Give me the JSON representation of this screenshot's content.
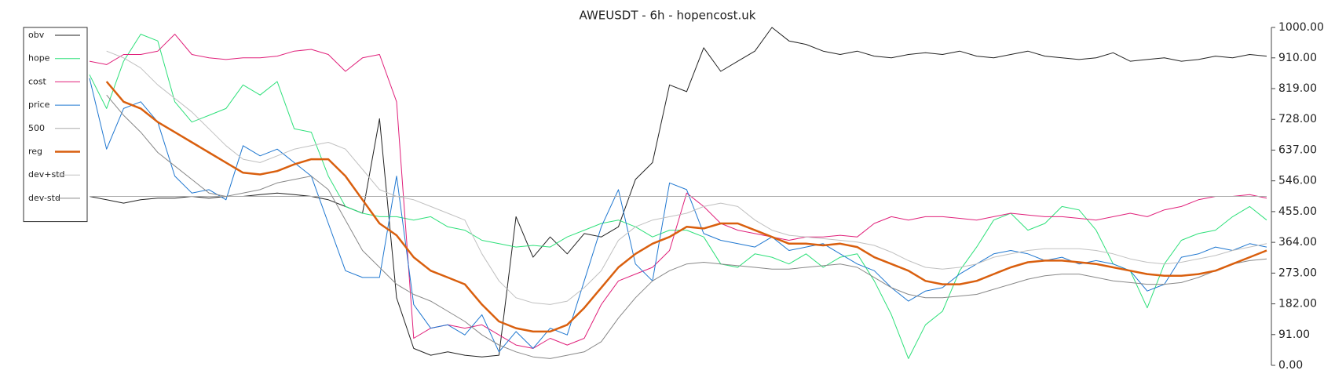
{
  "chart_data": {
    "type": "line",
    "title": "AWEUSDT - 6h - hopencost.uk",
    "y_axis_position": "right",
    "legend": "upper left",
    "ylim": [
      0,
      1000
    ],
    "yticks": [
      {
        "value": 0,
        "label": "0.00"
      },
      {
        "value": 91,
        "label": "91.00"
      },
      {
        "value": 182,
        "label": "182.00"
      },
      {
        "value": 273,
        "label": "273.00"
      },
      {
        "value": 364,
        "label": "364.00"
      },
      {
        "value": 455,
        "label": "455.00"
      },
      {
        "value": 546,
        "label": "546.00"
      },
      {
        "value": 637,
        "label": "637.00"
      },
      {
        "value": 728,
        "label": "728.00"
      },
      {
        "value": 819,
        "label": "819.00"
      },
      {
        "value": 910,
        "label": "910.00"
      },
      {
        "value": 1000,
        "label": "1000.00"
      }
    ],
    "series": [
      {
        "name": "obv",
        "color": "#222222",
        "width": 1,
        "values": [
          500,
          490,
          480,
          490,
          495,
          495,
          500,
          495,
          500,
          500,
          505,
          510,
          505,
          500,
          490,
          470,
          450,
          730,
          200,
          50,
          30,
          40,
          30,
          25,
          30,
          440,
          320,
          380,
          330,
          390,
          380,
          410,
          550,
          600,
          830,
          810,
          940,
          870,
          900,
          930,
          1000,
          960,
          950,
          930,
          920,
          930,
          915,
          910,
          920,
          925,
          920,
          930,
          915,
          910,
          920,
          930,
          915,
          910,
          905,
          910,
          925,
          900,
          905,
          910,
          900,
          905,
          915,
          910,
          920,
          915
        ]
      },
      {
        "name": "hope",
        "color": "#2ee07a",
        "width": 1,
        "values": [
          860,
          760,
          900,
          980,
          960,
          780,
          720,
          740,
          760,
          830,
          800,
          840,
          700,
          690,
          560,
          470,
          450,
          440,
          440,
          430,
          440,
          410,
          400,
          370,
          360,
          350,
          355,
          350,
          380,
          400,
          420,
          430,
          410,
          380,
          400,
          400,
          380,
          300,
          290,
          330,
          320,
          300,
          330,
          290,
          320,
          330,
          250,
          150,
          20,
          120,
          160,
          280,
          350,
          430,
          450,
          400,
          420,
          470,
          460,
          400,
          300,
          280,
          170,
          300,
          370,
          390,
          400,
          440,
          470,
          430
        ]
      },
      {
        "name": "cost",
        "color": "#e0207a",
        "width": 1,
        "values": [
          900,
          890,
          920,
          920,
          930,
          980,
          920,
          910,
          905,
          910,
          910,
          915,
          930,
          935,
          920,
          870,
          910,
          920,
          780,
          80,
          110,
          120,
          110,
          120,
          90,
          60,
          50,
          80,
          60,
          80,
          180,
          250,
          270,
          290,
          340,
          510,
          470,
          420,
          400,
          390,
          380,
          370,
          380,
          380,
          385,
          380,
          420,
          440,
          430,
          440,
          440,
          435,
          430,
          440,
          450,
          445,
          440,
          440,
          435,
          430,
          440,
          450,
          440,
          460,
          470,
          490,
          500,
          500,
          505,
          495
        ]
      },
      {
        "name": "price",
        "color": "#1f77d0",
        "width": 1,
        "values": [
          850,
          640,
          760,
          780,
          720,
          560,
          510,
          520,
          490,
          650,
          620,
          640,
          600,
          560,
          420,
          280,
          260,
          260,
          560,
          180,
          110,
          120,
          90,
          150,
          40,
          100,
          50,
          110,
          90,
          250,
          410,
          520,
          300,
          250,
          540,
          520,
          390,
          370,
          360,
          350,
          380,
          340,
          350,
          360,
          330,
          300,
          280,
          230,
          190,
          220,
          230,
          270,
          300,
          330,
          340,
          330,
          310,
          320,
          300,
          310,
          300,
          280,
          220,
          240,
          320,
          330,
          350,
          340,
          360,
          350
        ]
      },
      {
        "name": "500",
        "color": "#aaaaaa",
        "width": 1,
        "values": [
          500,
          500,
          500,
          500,
          500,
          500,
          500,
          500,
          500,
          500,
          500,
          500,
          500,
          500,
          500,
          500,
          500,
          500,
          500,
          500,
          500,
          500,
          500,
          500,
          500,
          500,
          500,
          500,
          500,
          500,
          500,
          500,
          500,
          500,
          500,
          500,
          500,
          500,
          500,
          500,
          500,
          500,
          500,
          500,
          500,
          500,
          500,
          500,
          500,
          500,
          500,
          500,
          500,
          500,
          500,
          500,
          500,
          500,
          500,
          500,
          500,
          500,
          500,
          500,
          500,
          500,
          500,
          500,
          500,
          500
        ]
      },
      {
        "name": "reg",
        "color": "#d95f0e",
        "width": 2.5,
        "values": [
          null,
          840,
          780,
          760,
          720,
          690,
          660,
          630,
          600,
          570,
          565,
          575,
          595,
          610,
          610,
          560,
          490,
          420,
          385,
          320,
          280,
          260,
          240,
          180,
          130,
          110,
          100,
          100,
          120,
          170,
          230,
          290,
          330,
          360,
          380,
          410,
          405,
          420,
          420,
          400,
          380,
          360,
          360,
          355,
          360,
          350,
          320,
          300,
          280,
          250,
          240,
          240,
          250,
          270,
          290,
          305,
          310,
          310,
          305,
          300,
          290,
          280,
          270,
          265,
          265,
          270,
          280,
          300,
          320,
          340
        ]
      },
      {
        "name": "dev+std",
        "color": "#c0c0c0",
        "width": 1,
        "values": [
          null,
          930,
          910,
          880,
          830,
          790,
          750,
          700,
          650,
          610,
          600,
          620,
          640,
          650,
          660,
          640,
          580,
          520,
          500,
          490,
          470,
          450,
          430,
          330,
          250,
          200,
          185,
          180,
          190,
          230,
          280,
          370,
          410,
          430,
          440,
          450,
          470,
          480,
          470,
          430,
          400,
          385,
          380,
          375,
          370,
          365,
          355,
          335,
          310,
          290,
          285,
          290,
          300,
          320,
          330,
          340,
          345,
          345,
          345,
          340,
          330,
          315,
          305,
          300,
          305,
          315,
          325,
          340,
          350,
          360
        ]
      },
      {
        "name": "dev-std",
        "color": "#888888",
        "width": 1,
        "values": [
          null,
          800,
          740,
          690,
          630,
          590,
          550,
          510,
          500,
          510,
          520,
          540,
          550,
          560,
          520,
          430,
          340,
          290,
          240,
          210,
          190,
          160,
          130,
          90,
          60,
          40,
          25,
          20,
          30,
          40,
          70,
          140,
          200,
          250,
          280,
          300,
          305,
          300,
          295,
          290,
          285,
          285,
          290,
          295,
          300,
          290,
          260,
          230,
          210,
          200,
          200,
          205,
          210,
          225,
          240,
          255,
          265,
          270,
          270,
          260,
          250,
          245,
          240,
          240,
          245,
          260,
          280,
          300,
          310,
          315
        ]
      }
    ]
  }
}
